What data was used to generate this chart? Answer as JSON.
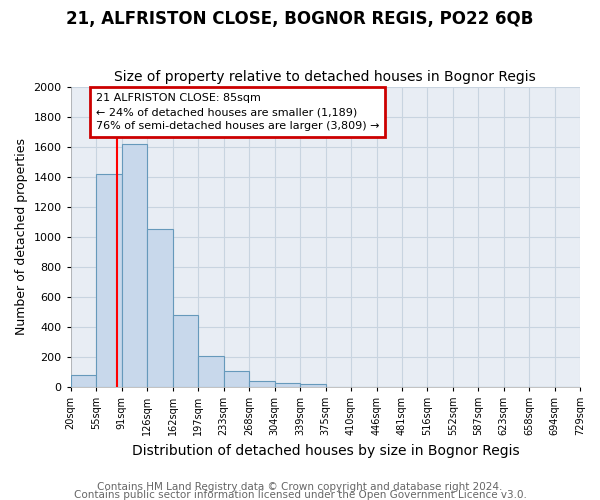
{
  "title1": "21, ALFRISTON CLOSE, BOGNOR REGIS, PO22 6QB",
  "title2": "Size of property relative to detached houses in Bognor Regis",
  "xlabel": "Distribution of detached houses by size in Bognor Regis",
  "ylabel": "Number of detached properties",
  "footer1": "Contains HM Land Registry data © Crown copyright and database right 2024.",
  "footer2": "Contains public sector information licensed under the Open Government Licence v3.0.",
  "bin_labels": [
    "20sqm",
    "55sqm",
    "91sqm",
    "126sqm",
    "162sqm",
    "197sqm",
    "233sqm",
    "268sqm",
    "304sqm",
    "339sqm",
    "375sqm",
    "410sqm",
    "446sqm",
    "481sqm",
    "516sqm",
    "552sqm",
    "587sqm",
    "623sqm",
    "658sqm",
    "694sqm",
    "729sqm"
  ],
  "bin_edges": [
    20,
    55,
    91,
    126,
    162,
    197,
    233,
    268,
    304,
    339,
    375,
    410,
    446,
    481,
    516,
    552,
    587,
    623,
    658,
    694,
    729
  ],
  "bar_heights": [
    80,
    1420,
    1620,
    1050,
    480,
    205,
    105,
    35,
    25,
    20,
    0,
    0,
    0,
    0,
    0,
    0,
    0,
    0,
    0,
    0
  ],
  "bar_color": "#c8d8eb",
  "bar_edge_color": "#6699bb",
  "grid_color": "#c8d4e0",
  "plot_bg_color": "#e8edf4",
  "fig_bg_color": "#ffffff",
  "red_line_x": 85,
  "ylim": [
    0,
    2000
  ],
  "annotation_text": "21 ALFRISTON CLOSE: 85sqm\n← 24% of detached houses are smaller (1,189)\n76% of semi-detached houses are larger (3,809) →",
  "annotation_box_color": "#ffffff",
  "annotation_box_edge": "#cc0000",
  "title1_fontsize": 12,
  "title2_fontsize": 10,
  "xlabel_fontsize": 10,
  "ylabel_fontsize": 9,
  "footer_fontsize": 7.5
}
